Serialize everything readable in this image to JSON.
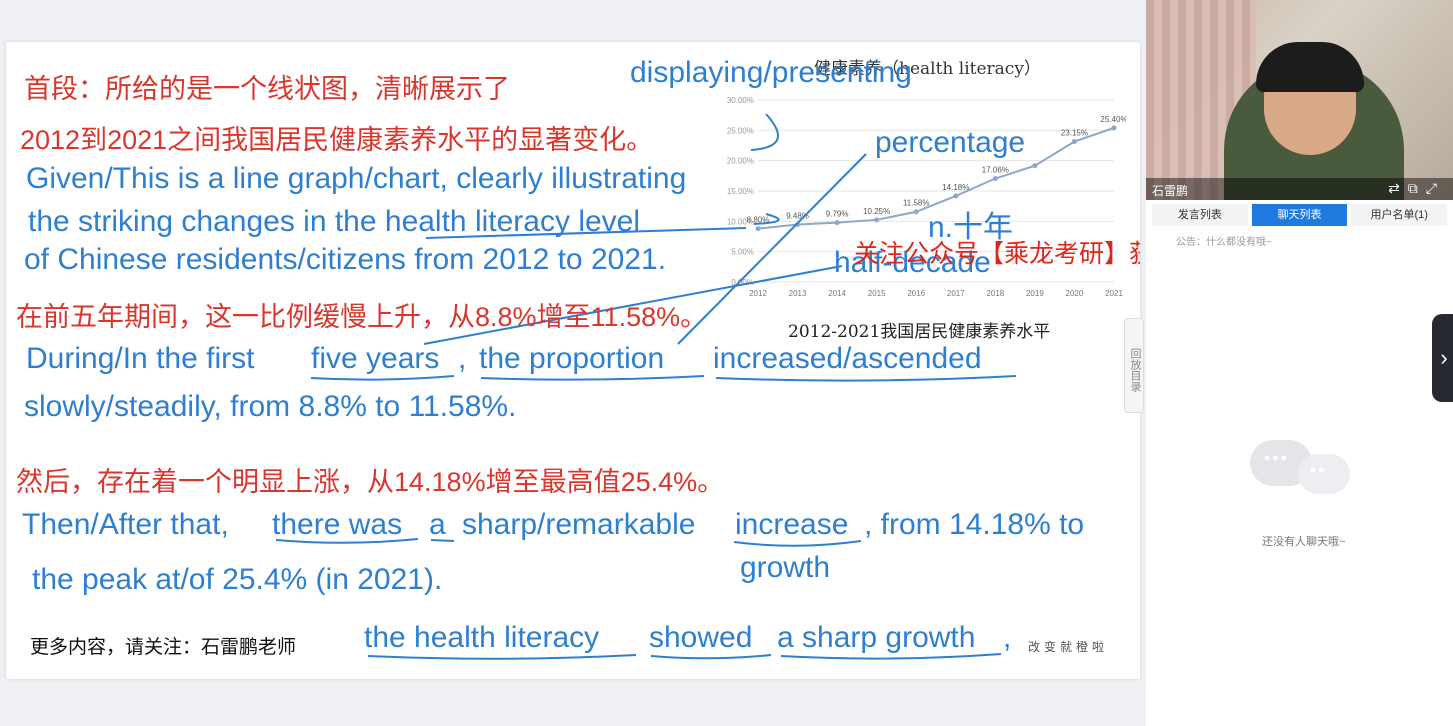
{
  "slide": {
    "cn_line1": "首段：所给的是一个线状图，清晰展示了",
    "cn_line2": "2012到2021之间我国居民健康素养水平的显著变化。",
    "en_line1": "Given/This is a line graph/chart, clearly illustrating",
    "en_line2": "the striking changes in the health literacy level",
    "en_line3": "of Chinese residents/citizens from 2012 to 2021.",
    "note_displaying": "displaying/presenting",
    "note_percentage": "percentage",
    "note_decade": "n.十年",
    "note_half_decade": "half-decade",
    "cn_line3": "在前五年期间，这一比例缓慢上升，从8.8%增至11.58%。",
    "en_line4_a": "During/In the first",
    "en_line4_b": "five years",
    "en_line4_c": ",",
    "en_line4_d": "the proportion",
    "en_line4_e": "increased/ascended",
    "en_line5": "slowly/steadily, from 8.8% to 11.58%.",
    "cn_line4": "然后，存在着一个明显上涨，从14.18%增至最高值25.4%。",
    "en_line6_a": "Then/After that,",
    "en_line6_b": "there was",
    "en_line6_c": "a",
    "en_line6_d": "sharp/remarkable",
    "en_line6_e": "increase",
    "en_line6_f": ", from 14.18% to",
    "note_growth": "growth",
    "en_line7": "the peak at/of 25.4% (in 2021).",
    "footer_cn": "更多内容，请关注：石雷鹏老师",
    "en_line8_a": "the health literacy",
    "en_line8_b": "showed",
    "en_line8_c": "a sharp growth",
    "en_line8_d": ",",
    "footer_small": "改变就橙啦",
    "promo": "关注公众号【乘龙考研】获取后续课程更新",
    "side_tab": "回放目录"
  },
  "chart_data": {
    "type": "line",
    "title": "健康素养（health literacy）",
    "caption": "2012-2021我国居民健康素养水平",
    "categories": [
      "2012",
      "2013",
      "2014",
      "2015",
      "2016",
      "2017",
      "2018",
      "2019",
      "2020",
      "2021"
    ],
    "values": [
      8.8,
      9.48,
      9.79,
      10.25,
      11.58,
      14.18,
      17.06,
      19.17,
      23.15,
      25.4
    ],
    "data_labels": [
      "8.80%",
      "9.48%",
      "9.79%",
      "10.25%",
      "11.58%",
      "14.18%",
      "17.06%",
      "",
      "23.15%",
      "25.40%"
    ],
    "y_ticks": [
      "0.00%",
      "5.00%",
      "10.00%",
      "15.00%",
      "20.00%",
      "25.00%",
      "30.00%"
    ],
    "ylim": [
      0,
      30
    ],
    "grid": true,
    "color": "#8fa6c9"
  },
  "right_panel": {
    "teacher_name": "石雷鹏",
    "tabs": [
      "发言列表",
      "聊天列表",
      "用户名单(1)"
    ],
    "active_tab": 1,
    "notice": "公告：什么都没有哦~",
    "empty_text": "还没有人聊天哦~"
  },
  "colors": {
    "red_text": "#d9362c",
    "blue_ink": "#2e7fd0",
    "accent_tab": "#1f7ae0"
  }
}
